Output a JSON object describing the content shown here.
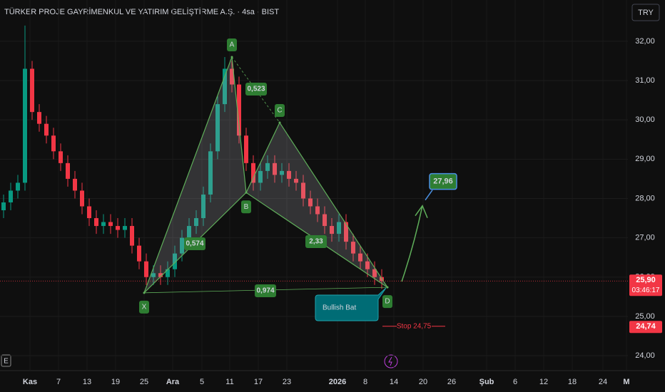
{
  "chart_data": {
    "type": "candlestick",
    "title": "TÜRKER PROJE GAYRİMENKUL VE YATIRIM GELİŞTİRME A.Ş. · 4sa · BIST",
    "currency": "TRY",
    "categories": [
      "Kas",
      "7",
      "13",
      "19",
      "25",
      "Ara",
      "5",
      "11",
      "17",
      "23",
      "2026",
      "8",
      "14",
      "20",
      "26",
      "Şub",
      "6",
      "12",
      "18",
      "24",
      "M"
    ],
    "open": [
      27.7,
      27.9,
      28.2,
      28.4,
      31.3,
      30.2,
      29.9,
      29.6,
      29.2,
      28.9,
      28.5,
      28.2,
      27.8,
      27.5,
      27.3,
      27.4,
      27.3,
      27.2,
      27.3,
      26.8,
      26.4,
      26.0,
      26.1,
      26.0,
      26.2,
      26.6,
      27.0,
      27.3,
      27.5,
      28.1,
      29.2,
      30.4,
      31.3,
      30.9,
      29.6,
      28.9,
      28.4,
      28.7,
      28.9,
      28.6,
      28.7,
      28.5,
      28.4,
      28.0,
      27.8,
      27.6,
      27.3,
      27.1,
      27.4,
      26.9,
      26.6,
      26.4,
      26.2,
      26.0
    ],
    "close": [
      27.9,
      28.2,
      28.4,
      31.3,
      30.2,
      29.9,
      29.6,
      29.2,
      28.9,
      28.5,
      28.2,
      27.8,
      27.5,
      27.3,
      27.4,
      27.3,
      27.2,
      27.3,
      26.8,
      26.4,
      26.0,
      26.1,
      26.0,
      26.2,
      26.6,
      27.0,
      27.3,
      27.5,
      28.1,
      29.2,
      30.4,
      31.3,
      30.9,
      29.6,
      28.9,
      28.4,
      28.7,
      28.9,
      28.6,
      28.7,
      28.5,
      28.4,
      28.0,
      27.8,
      27.6,
      27.3,
      27.1,
      27.4,
      26.9,
      26.6,
      26.4,
      26.2,
      26.0,
      25.9
    ],
    "high": [
      28.1,
      28.4,
      28.6,
      32.4,
      31.5,
      30.4,
      30.1,
      29.8,
      29.4,
      29.1,
      28.7,
      28.4,
      28.0,
      27.7,
      27.6,
      27.6,
      27.5,
      27.5,
      27.5,
      27.0,
      26.6,
      26.3,
      26.3,
      26.4,
      26.8,
      27.2,
      27.5,
      27.7,
      28.3,
      29.4,
      30.6,
      31.6,
      31.5,
      31.1,
      29.8,
      29.1,
      28.9,
      29.1,
      29.1,
      28.9,
      28.9,
      28.7,
      28.6,
      28.2,
      28.0,
      27.8,
      27.5,
      27.6,
      27.6,
      27.1,
      26.8,
      26.6,
      26.4,
      26.2
    ],
    "low": [
      27.5,
      27.7,
      28.0,
      28.2,
      30.0,
      29.7,
      29.4,
      29.0,
      28.7,
      28.3,
      28.0,
      27.6,
      27.3,
      27.1,
      27.1,
      27.1,
      27.0,
      27.0,
      26.6,
      26.2,
      25.8,
      25.8,
      25.8,
      25.8,
      26.0,
      26.4,
      26.8,
      27.1,
      27.3,
      27.9,
      29.0,
      30.2,
      30.7,
      29.4,
      28.7,
      28.2,
      28.2,
      28.5,
      28.4,
      28.4,
      28.3,
      28.2,
      27.8,
      27.6,
      27.4,
      27.1,
      26.9,
      26.9,
      26.7,
      26.4,
      26.2,
      26.0,
      25.8,
      25.7
    ],
    "up_color": "#089981",
    "down_color": "#f23645",
    "ylim": [
      23.62,
      33.05
    ],
    "yticks": [
      {
        "value": 32,
        "label": "32,00"
      },
      {
        "value": 31,
        "label": "31,00"
      },
      {
        "value": 30,
        "label": "30,00"
      },
      {
        "value": 29,
        "label": "29,00"
      },
      {
        "value": 28,
        "label": "28,00"
      },
      {
        "value": 27,
        "label": "27,00"
      },
      {
        "value": 26,
        "label": "26,00"
      },
      {
        "value": 25,
        "label": "25,00"
      },
      {
        "value": 24,
        "label": "24,00"
      }
    ],
    "grid": true,
    "last_price": {
      "value": 25.9,
      "label": "25,90"
    },
    "countdown": "03:46:17",
    "stop_marker": {
      "value": 24.74,
      "label": "24,74"
    },
    "pattern": {
      "name": "Bullish Bat",
      "points": [
        {
          "label": "X",
          "value": 25.6
        },
        {
          "label": "A",
          "value": 31.6
        },
        {
          "label": "B",
          "value": 28.15
        },
        {
          "label": "C",
          "value": 29.93
        },
        {
          "label": "D",
          "value": 25.74
        }
      ],
      "ratios": [
        "0,574",
        "0,523",
        "2,33",
        "0,974"
      ],
      "target": {
        "value": 27.96,
        "label": "27,96"
      },
      "stop": {
        "value": 24.75,
        "label": "Stop 24,75"
      }
    },
    "badge": "E"
  }
}
